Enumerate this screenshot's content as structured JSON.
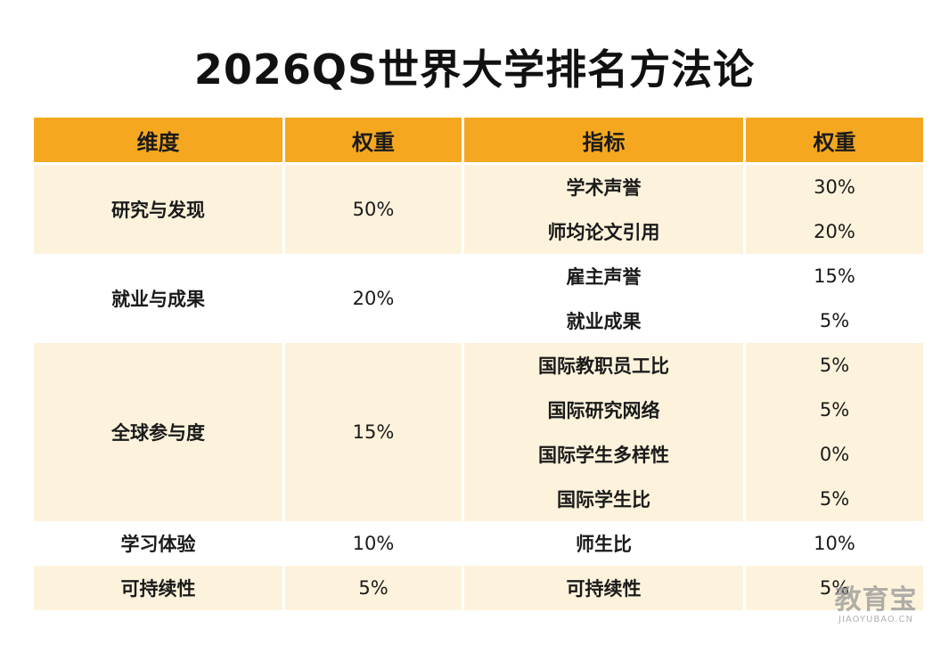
{
  "title": "2026QS世界大学排名方法论",
  "headers": [
    "维度",
    "权重",
    "指标",
    "权重"
  ],
  "rows": [
    {
      "dim": "研究与发现",
      "dim_weight": "50%",
      "indicator": "学术声誉",
      "weight": "30%"
    },
    {
      "indicator": "师均论文引用",
      "weight": "20%"
    },
    {
      "dim": "就业与成果",
      "dim_weight": "20%",
      "indicator": "雇主声誉",
      "weight": "15%"
    },
    {
      "indicator": "就业成果",
      "weight": "5%"
    },
    {
      "dim": "全球参与度",
      "dim_weight": "15%",
      "indicator": "国际教职员工比",
      "weight": "5%"
    },
    {
      "indicator": "国际研究网络",
      "weight": "5%"
    },
    {
      "indicator": "国际学生多样性",
      "weight": "0%"
    },
    {
      "indicator": "国际学生比",
      "weight": "5%"
    },
    {
      "dim": "学习体验",
      "dim_weight": "10%",
      "indicator": "师生比",
      "weight": "10%"
    },
    {
      "dim": "可持续性",
      "dim_weight": "5%",
      "indicator": "可持续性",
      "weight": "5%"
    }
  ],
  "watermark": {
    "main": "教育宝",
    "sub": "JIAOYUBAO.CN"
  },
  "colors": {
    "header_bg": "#f5a81f",
    "band_bg": "#fdf3dc"
  }
}
